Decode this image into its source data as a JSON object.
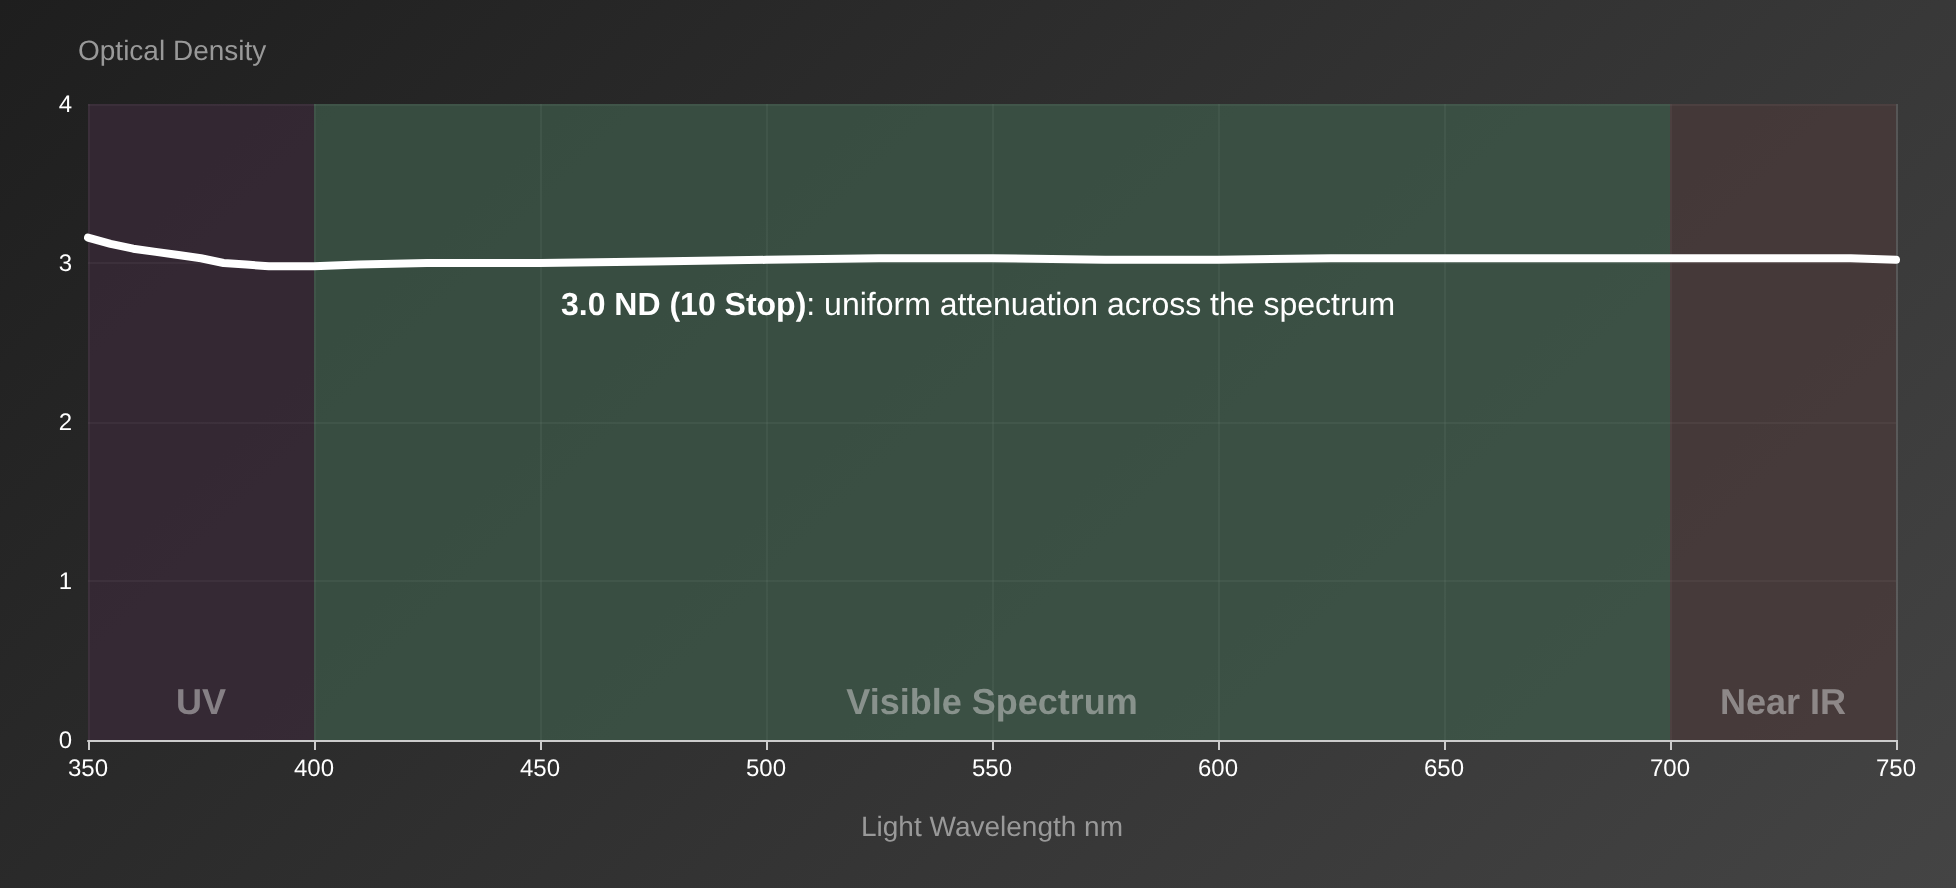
{
  "chart_data": {
    "type": "line",
    "xlabel": "Light Wavelength nm",
    "ylabel": "Optical Density",
    "x": [
      350,
      355,
      360,
      365,
      370,
      375,
      380,
      385,
      390,
      400,
      410,
      425,
      450,
      475,
      500,
      525,
      550,
      575,
      600,
      625,
      650,
      675,
      700,
      725,
      740,
      750
    ],
    "series": [
      {
        "color": "#ffffff",
        "values": [
          3.16,
          3.12,
          3.09,
          3.07,
          3.05,
          3.03,
          3.0,
          2.99,
          2.98,
          2.98,
          2.99,
          3.0,
          3.0,
          3.01,
          3.02,
          3.03,
          3.03,
          3.02,
          3.02,
          3.03,
          3.03,
          3.03,
          3.03,
          3.03,
          3.03,
          3.02
        ]
      }
    ],
    "xlim": [
      350,
      750
    ],
    "xticks": [
      350,
      400,
      450,
      500,
      550,
      600,
      650,
      700,
      750
    ],
    "ylim": [
      0,
      4
    ],
    "yticks": [
      0,
      1,
      2,
      3,
      4
    ],
    "bands": [
      {
        "axis": "x",
        "from": 350,
        "to": 400,
        "label": "UV",
        "color": "#3a2a38"
      },
      {
        "axis": "x",
        "from": 400,
        "to": 700,
        "label": "Visible Spectrum",
        "color": "#3d5a4a"
      },
      {
        "axis": "x",
        "from": 700,
        "to": 750,
        "label": "Near IR",
        "color": "#4a3a3a"
      }
    ],
    "annotations": [
      "3.0 ND (10 Stop): uniform attenuation across the spectrum"
    ],
    "grid": true,
    "marker": "none",
    "line_style": "solid"
  }
}
